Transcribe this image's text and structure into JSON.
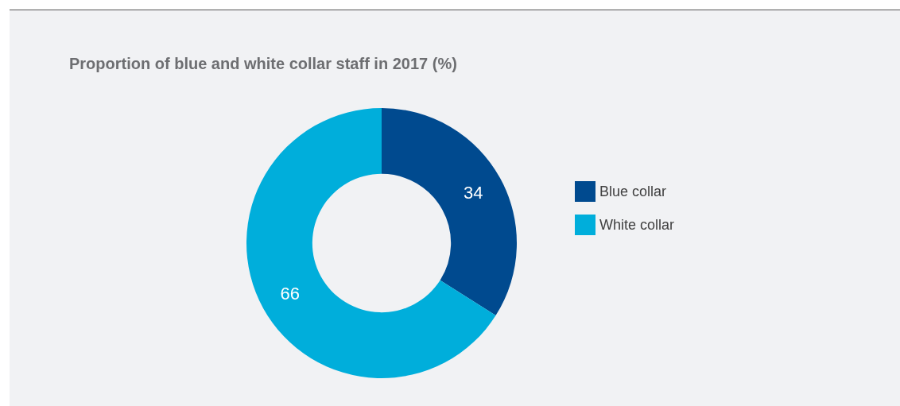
{
  "chart_data": {
    "type": "donut",
    "title": "Proportion of blue and white collar staff in 2017 (%)",
    "categories": [
      "Blue collar",
      "White collar"
    ],
    "values": [
      34,
      66
    ],
    "colors": [
      "#004a8f",
      "#00aedb"
    ],
    "data_labels": true,
    "legend": "right"
  }
}
